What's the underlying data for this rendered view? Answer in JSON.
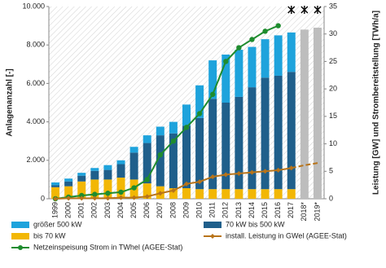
{
  "chart_data": {
    "type": "bar",
    "y_label": "Anlagenanzahl [-]",
    "y2_label": "Leistung [GW] und Strombereitstellung [TWh/a]",
    "categories": [
      "1999",
      "2000",
      "2001",
      "2002",
      "2003",
      "2004",
      "2005",
      "2006",
      "2007",
      "2008",
      "2009",
      "2010",
      "2011",
      "2012",
      "2013",
      "2014",
      "2015",
      "2016",
      "2017",
      "2018*",
      "2019*"
    ],
    "ylim": [
      0,
      10000
    ],
    "yticks": [
      0,
      {
        "value": 2000,
        "label": "2.000"
      },
      {
        "value": 4000,
        "label": "4.000"
      },
      {
        "value": 6000,
        "label": "6.000"
      },
      {
        "value": 8000,
        "label": "8.000"
      },
      {
        "value": 10000,
        "label": "10.000"
      }
    ],
    "y2lim": [
      0,
      35
    ],
    "y2ticks": [
      0,
      5,
      10,
      15,
      20,
      25,
      30,
      35
    ],
    "series": [
      {
        "name": "bis 70 kW",
        "color": "#f2b705",
        "values": [
          600,
          650,
          900,
          1000,
          1000,
          1100,
          1000,
          800,
          650,
          550,
          550,
          500,
          500,
          500,
          500,
          500,
          500,
          500,
          500,
          null,
          null
        ]
      },
      {
        "name": "70 kW bis 500 kW",
        "color": "#1f5f8b",
        "values": [
          100,
          250,
          300,
          450,
          500,
          700,
          1400,
          2100,
          2650,
          2850,
          3250,
          3700,
          4700,
          4500,
          4800,
          5300,
          5800,
          5900,
          6100,
          null,
          null
        ]
      },
      {
        "name": "größer 500 kW",
        "color": "#1ea3dc",
        "values": [
          150,
          150,
          150,
          150,
          250,
          200,
          300,
          400,
          450,
          600,
          1100,
          1700,
          2000,
          2500,
          2450,
          2100,
          2000,
          2100,
          2050,
          null,
          null
        ]
      },
      {
        "color": "#bdbdbd",
        "values": [
          null,
          null,
          null,
          null,
          null,
          null,
          null,
          null,
          null,
          null,
          null,
          null,
          null,
          null,
          null,
          null,
          null,
          null,
          null,
          8800,
          8900
        ]
      },
      {
        "name": "Netzeinspeisung Strom in TWhel (AGEE-Stat)",
        "type": "line",
        "axis": "y2",
        "color": "#1e8c2e",
        "marker": "circle",
        "values": [
          0,
          0.3,
          0.6,
          0.8,
          1.0,
          1.2,
          2.0,
          3.5,
          8,
          10.5,
          13,
          15.5,
          19,
          25,
          27.5,
          29,
          30.5,
          31.5,
          null,
          null,
          null
        ]
      },
      {
        "name": "install. Leistung in GWel (AGEE-Stat)",
        "type": "line",
        "axis": "y2",
        "color": "#b8741a",
        "marker": "diamond",
        "values": [
          0,
          0.1,
          0.1,
          0.1,
          0.1,
          0.2,
          0.2,
          0.4,
          1.0,
          1.5,
          2.7,
          3.1,
          4.0,
          4.4,
          4.6,
          4.8,
          5.0,
          5.2,
          5.6,
          null,
          null
        ]
      },
      {
        "type": "line",
        "axis": "y2",
        "color": "#b8741a",
        "dashed": true,
        "values": [
          null,
          null,
          null,
          null,
          null,
          null,
          null,
          null,
          null,
          null,
          null,
          null,
          null,
          null,
          null,
          null,
          null,
          null,
          5.6,
          6.1,
          6.5
        ]
      }
    ]
  }
}
